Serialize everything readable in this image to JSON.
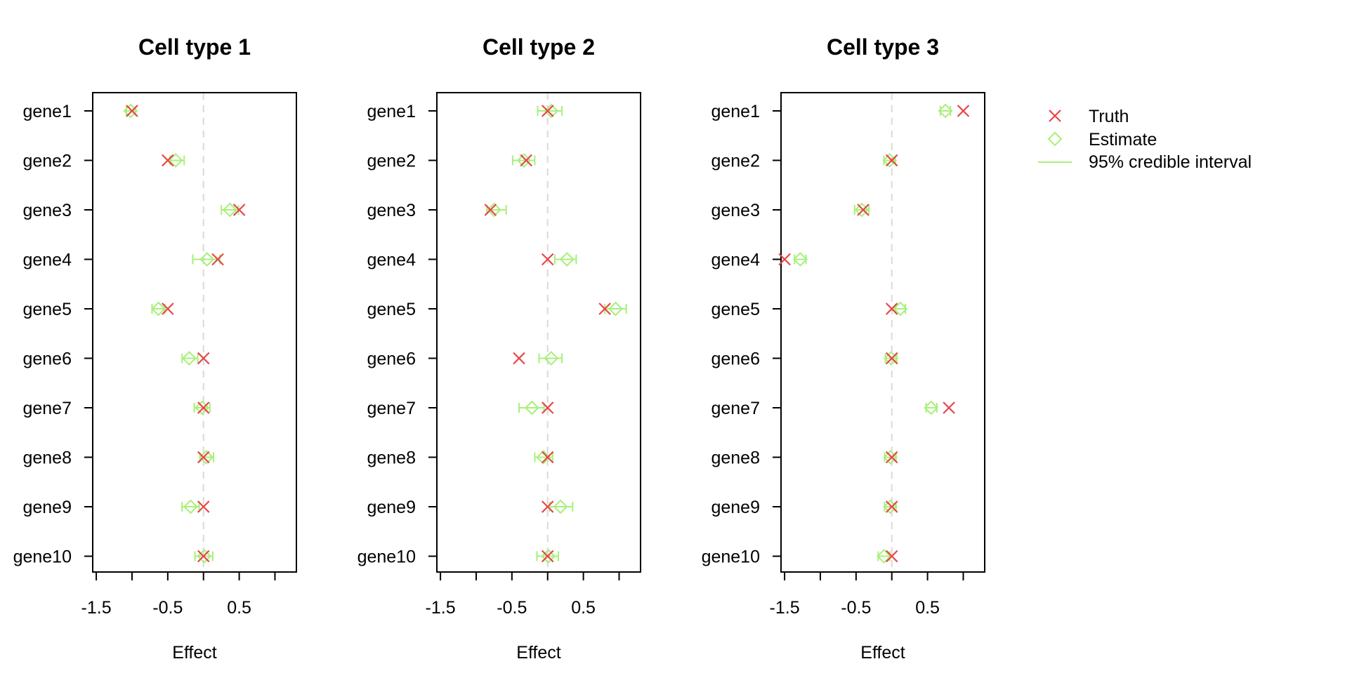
{
  "legend": {
    "truth_label": "Truth",
    "estimate_label": "Estimate",
    "interval_label": "95% credible interval",
    "truth_color": "#e8454a",
    "estimate_color": "#a8f07a"
  },
  "chart_data": [
    {
      "type": "scatter",
      "title": "Cell type 1",
      "xlabel": "Effect",
      "xlim": [
        -1.55,
        1.3
      ],
      "xticks": [
        -1.5,
        -1,
        -0.5,
        0,
        0.5,
        1
      ],
      "xtick_labels": [
        "-1.5",
        "",
        "-0.5",
        "",
        "0.5",
        ""
      ],
      "reference_line": 0,
      "categories": [
        "gene1",
        "gene2",
        "gene3",
        "gene4",
        "gene5",
        "gene6",
        "gene7",
        "gene8",
        "gene9",
        "gene10"
      ],
      "truth": [
        -1.0,
        -0.5,
        0.5,
        0.2,
        -0.5,
        0.0,
        0.0,
        0.0,
        0.0,
        0.0
      ],
      "estimate": [
        -1.02,
        -0.39,
        0.37,
        0.05,
        -0.63,
        -0.2,
        -0.02,
        0.04,
        -0.18,
        0.01
      ],
      "ci_lower": [
        -1.08,
        -0.47,
        0.25,
        -0.15,
        -0.72,
        -0.3,
        -0.13,
        -0.05,
        -0.3,
        -0.12
      ],
      "ci_upper": [
        -0.95,
        -0.27,
        0.49,
        0.23,
        -0.54,
        -0.08,
        0.09,
        0.14,
        -0.06,
        0.13
      ]
    },
    {
      "type": "scatter",
      "title": "Cell type 2",
      "xlabel": "Effect",
      "xlim": [
        -1.55,
        1.3
      ],
      "xticks": [
        -1.5,
        -1,
        -0.5,
        0,
        0.5,
        1
      ],
      "xtick_labels": [
        "-1.5",
        "",
        "-0.5",
        "",
        "0.5",
        ""
      ],
      "reference_line": 0,
      "categories": [
        "gene1",
        "gene2",
        "gene3",
        "gene4",
        "gene5",
        "gene6",
        "gene7",
        "gene8",
        "gene9",
        "gene10"
      ],
      "truth": [
        0.0,
        -0.3,
        -0.8,
        0.0,
        0.8,
        -0.4,
        0.0,
        0.0,
        0.0,
        0.0
      ],
      "estimate": [
        0.05,
        -0.33,
        -0.75,
        0.27,
        0.95,
        0.05,
        -0.22,
        -0.06,
        0.18,
        0.01
      ],
      "ci_lower": [
        -0.14,
        -0.49,
        -0.85,
        0.1,
        0.8,
        -0.12,
        -0.4,
        -0.18,
        0.03,
        -0.15
      ],
      "ci_upper": [
        0.2,
        -0.18,
        -0.58,
        0.4,
        1.1,
        0.2,
        -0.05,
        0.07,
        0.35,
        0.15
      ]
    },
    {
      "type": "scatter",
      "title": "Cell type 3",
      "xlabel": "Effect",
      "xlim": [
        -1.55,
        1.3
      ],
      "xticks": [
        -1.5,
        -1,
        -0.5,
        0,
        0.5,
        1
      ],
      "xtick_labels": [
        "-1.5",
        "",
        "-0.5",
        "",
        "0.5",
        ""
      ],
      "reference_line": 0,
      "categories": [
        "gene1",
        "gene2",
        "gene3",
        "gene4",
        "gene5",
        "gene6",
        "gene7",
        "gene8",
        "gene9",
        "gene10"
      ],
      "truth": [
        1.0,
        0.0,
        -0.4,
        -1.5,
        0.0,
        0.0,
        0.8,
        0.0,
        0.0,
        0.0
      ],
      "estimate": [
        0.75,
        -0.03,
        -0.42,
        -1.28,
        0.12,
        -0.01,
        0.55,
        -0.02,
        -0.02,
        -0.11
      ],
      "ci_lower": [
        0.68,
        -0.11,
        -0.52,
        -1.36,
        0.05,
        -0.09,
        0.48,
        -0.1,
        -0.1,
        -0.19
      ],
      "ci_upper": [
        0.82,
        0.05,
        -0.32,
        -1.2,
        0.19,
        0.07,
        0.63,
        0.06,
        0.06,
        -0.03
      ]
    }
  ]
}
